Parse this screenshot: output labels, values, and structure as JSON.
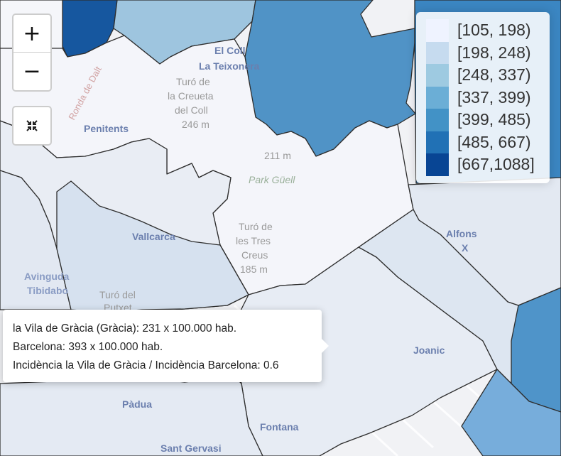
{
  "zoom": {
    "in_label": "+",
    "out_label": "−"
  },
  "reset": {
    "icon": "compress-arrows-icon"
  },
  "legend": {
    "items": [
      {
        "label": "[105, 198)",
        "color": "#eff3ff"
      },
      {
        "label": "[198, 248)",
        "color": "#c6dbef"
      },
      {
        "label": "[248, 337)",
        "color": "#9ecae1"
      },
      {
        "label": "[337, 399)",
        "color": "#6baed6"
      },
      {
        "label": "[399, 485)",
        "color": "#4292c6"
      },
      {
        "label": "[485, 667)",
        "color": "#2171b5"
      },
      {
        "label": "[667,1088]",
        "color": "#084594"
      }
    ]
  },
  "tooltip": {
    "line1": "la Vila de Gràcia (Gràcia): 231 x 100.000 hab.",
    "line2": "Barcelona: 393 x 100.000 hab.",
    "line3": "Incidència la Vila de Gràcia / Incidència Barcelona: 0.6"
  },
  "basemap_labels": {
    "el_coll": "El Coll",
    "la_teixonera": "La Teixonera",
    "turo_creueta": [
      "Turó de",
      "la Creueta",
      "del Coll",
      "246 m"
    ],
    "penitents": "Penitents",
    "ronda": "Ronda de Dalt",
    "peak_211": "211 m",
    "park_guell": "Park Güell",
    "turo_tres_creus": [
      "Turó de",
      "les Tres",
      "Creus",
      "185 m"
    ],
    "vallcarca": "Vallcarca",
    "avinguda_tibidabo": [
      "Avinguda",
      "Tibidabo"
    ],
    "turo_putxet": [
      "Turó del",
      "Putxet"
    ],
    "alfons_x": [
      "Alfons",
      "X"
    ],
    "joanic": "Joanic",
    "padua": "Pàdua",
    "fontana": "Fontana",
    "sant_gervasi": "Sant Gervasi"
  }
}
